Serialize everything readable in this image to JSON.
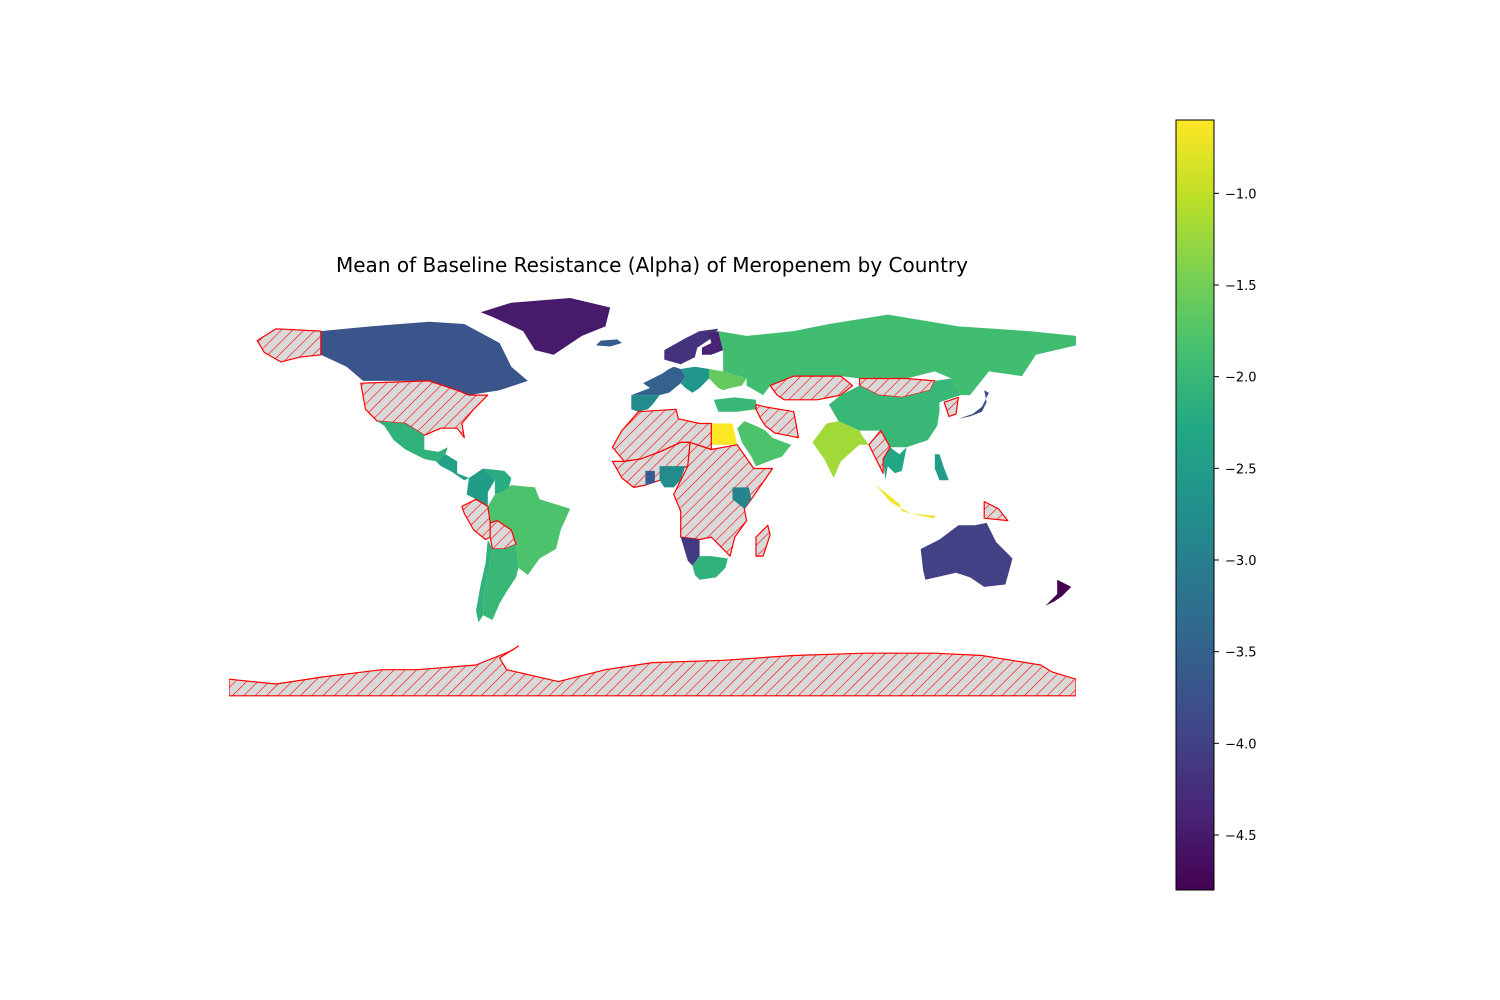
{
  "chart_data": {
    "type": "choropleth",
    "title": "Mean of Baseline Resistance (Alpha) of Meropenem by Country",
    "colormap": "viridis",
    "missing_style": {
      "fill": "#d9d9d9",
      "edge": "#ff0000",
      "hatch": "///"
    },
    "colorbar": {
      "vmin": -4.8,
      "vmax": -0.6,
      "ticks": [
        -1.0,
        -1.5,
        -2.0,
        -2.5,
        -3.0,
        -3.5,
        -4.0,
        -4.5
      ],
      "tick_labels": [
        "−1.0",
        "−1.5",
        "−2.0",
        "−2.5",
        "−3.0",
        "−3.5",
        "−4.0",
        "−4.5"
      ]
    },
    "regions": [
      {
        "name": "Greenland",
        "value": -4.5
      },
      {
        "name": "Canada",
        "value": -3.7
      },
      {
        "name": "United States",
        "value": null
      },
      {
        "name": "Alaska",
        "value": null
      },
      {
        "name": "Mexico",
        "value": -2.1
      },
      {
        "name": "Central America",
        "value": -2.4
      },
      {
        "name": "Colombia",
        "value": -2.5
      },
      {
        "name": "Venezuela",
        "value": -2.2
      },
      {
        "name": "Brazil",
        "value": -1.8
      },
      {
        "name": "Peru",
        "value": null
      },
      {
        "name": "Bolivia",
        "value": null
      },
      {
        "name": "Argentina",
        "value": -2.0
      },
      {
        "name": "Chile",
        "value": -2.1
      },
      {
        "name": "Iceland",
        "value": -3.6
      },
      {
        "name": "Scandinavia",
        "value": -4.2
      },
      {
        "name": "Finland",
        "value": -4.4
      },
      {
        "name": "Western Europe",
        "value": -3.5
      },
      {
        "name": "Central Europe",
        "value": -2.6
      },
      {
        "name": "Spain",
        "value": -2.8
      },
      {
        "name": "Ukraine",
        "value": -1.6
      },
      {
        "name": "Russia",
        "value": -1.9
      },
      {
        "name": "Turkey",
        "value": -2.0
      },
      {
        "name": "Saudi Arabia",
        "value": -1.8
      },
      {
        "name": "Iran",
        "value": null
      },
      {
        "name": "Kazakhstan",
        "value": null
      },
      {
        "name": "Mongolia",
        "value": null
      },
      {
        "name": "China",
        "value": -2.0
      },
      {
        "name": "India",
        "value": -1.2
      },
      {
        "name": "Thailand",
        "value": -2.3
      },
      {
        "name": "Myanmar",
        "value": null
      },
      {
        "name": "Indonesia",
        "value": -0.7
      },
      {
        "name": "Philippines",
        "value": -2.5
      },
      {
        "name": "Japan",
        "value": -3.8
      },
      {
        "name": "Korea",
        "value": null
      },
      {
        "name": "Papua New Guinea",
        "value": null
      },
      {
        "name": "Australia",
        "value": -4.0
      },
      {
        "name": "New Zealand",
        "value": -4.8
      },
      {
        "name": "Egypt",
        "value": -0.6
      },
      {
        "name": "North Africa",
        "value": null
      },
      {
        "name": "West Africa",
        "value": null
      },
      {
        "name": "Ghana",
        "value": -3.6
      },
      {
        "name": "Nigeria",
        "value": -2.8
      },
      {
        "name": "Central Africa",
        "value": null
      },
      {
        "name": "Kenya",
        "value": -2.9
      },
      {
        "name": "Namibia",
        "value": -4.1
      },
      {
        "name": "South Africa",
        "value": -2.1
      },
      {
        "name": "Madagascar",
        "value": null
      },
      {
        "name": "Antarctica",
        "value": null
      }
    ]
  }
}
